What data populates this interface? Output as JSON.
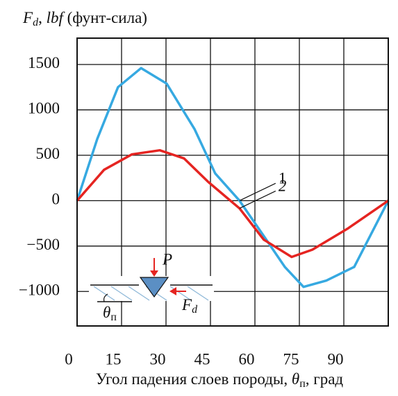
{
  "chart_data": {
    "type": "line",
    "y_label": [
      "F",
      "d",
      ", ",
      "lbf",
      " (фунт-сила)"
    ],
    "x_label": [
      "Угол падения слоев породы, ",
      "θ",
      "п",
      ", град"
    ],
    "xlim": [
      0,
      105
    ],
    "xticks": [
      0,
      15,
      30,
      45,
      60,
      75,
      90
    ],
    "ylim": [
      -1380,
      1790
    ],
    "yticks": [
      {
        "value": -1000,
        "label": "−1000"
      },
      {
        "value": -500,
        "label": "−500"
      },
      0,
      500,
      1000,
      1500
    ],
    "grid": true,
    "series": [
      {
        "name": "1",
        "color": "#36a9e1",
        "x": [
          0,
          6.8,
          13.8,
          21.6,
          30.2,
          39.6,
          46.6,
          54.8,
          63.0,
          70.1,
          76.4,
          84.1,
          93.5,
          105
        ],
        "values": [
          0,
          680,
          1250,
          1460,
          1290,
          790,
          300,
          0,
          -390,
          -730,
          -950,
          -880,
          -730,
          0
        ]
      },
      {
        "name": "2",
        "color": "#e52421",
        "x": [
          0,
          9.1,
          18.5,
          27.9,
          36.1,
          44.3,
          54.8,
          63.0,
          72.4,
          79.4,
          91.2,
          105
        ],
        "values": [
          0,
          340,
          510,
          555,
          465,
          205,
          -85,
          -430,
          -620,
          -540,
          -310,
          0
        ]
      }
    ],
    "inset": {
      "force": "P",
      "drag": [
        "F",
        "d"
      ],
      "angle": [
        "θ",
        "п"
      ]
    }
  }
}
